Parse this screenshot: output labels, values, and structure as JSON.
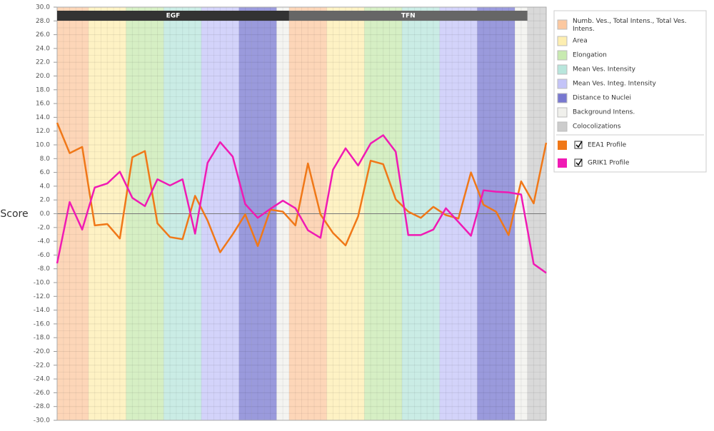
{
  "chart_data": {
    "type": "line",
    "y_label": "Score",
    "groups": [
      "EGF",
      "TFN"
    ],
    "legend_items": [
      {
        "name": "Numb. Ves., Total Intens., Total Ves. Intens.",
        "color": "#fcc8a0"
      },
      {
        "name": "Area",
        "color": "#fdeeb0"
      },
      {
        "name": "Elongation",
        "color": "#c8eab0"
      },
      {
        "name": "Mean Ves. Intensity",
        "color": "#b8e6dc"
      },
      {
        "name": "Mean Ves. Integ. Intensity",
        "color": "#c4c4f8"
      },
      {
        "name": "Distance to Nuclei",
        "color": "#7878d0"
      },
      {
        "name": "Background Intens.",
        "color": "#f0f0ec"
      },
      {
        "name": "Colocolizations",
        "color": "#cccccc"
      }
    ],
    "series": [
      {
        "name": "EEA1 Profile",
        "color": "#f07818",
        "values": [
          13.2,
          8.8,
          9.7,
          -1.7,
          -1.5,
          -3.6,
          8.2,
          9.1,
          -1.4,
          -3.4,
          -3.7,
          2.6,
          -1.0,
          -5.6,
          -3.0,
          -0.1,
          -4.7,
          0.6,
          0.3,
          -1.7,
          7.3,
          -0.1,
          -2.8,
          -4.6,
          -0.4,
          7.7,
          7.2,
          2.1,
          0.3,
          -0.6,
          1.0,
          -0.2,
          -0.7,
          6.0,
          1.3,
          0.3,
          -3.1,
          4.7,
          1.5,
          10.3
        ]
      },
      {
        "name": "GRIK1 Profile",
        "color": "#f01ab4",
        "values": [
          -7.2,
          1.7,
          -2.3,
          3.8,
          4.4,
          6.1,
          2.3,
          1.1,
          5.0,
          4.1,
          5.0,
          -2.9,
          7.4,
          10.4,
          8.3,
          1.4,
          -0.6,
          0.7,
          1.9,
          0.8,
          -2.4,
          -3.5,
          6.4,
          9.5,
          7.0,
          10.2,
          11.4,
          9.0,
          -3.1,
          -3.1,
          -2.3,
          0.8,
          -1.2,
          -3.2,
          3.4,
          3.2,
          3.1,
          2.8,
          -7.3,
          -8.6
        ]
      }
    ],
    "ylim": [
      -30,
      30
    ],
    "yticks": [
      {
        "value": -30,
        "label": "-30.0"
      },
      {
        "value": -28,
        "label": "-28.0"
      },
      {
        "value": -26,
        "label": "-26.0"
      },
      {
        "value": -24,
        "label": "-24.0"
      },
      {
        "value": -22,
        "label": "-22.0"
      },
      {
        "value": -20,
        "label": "-20.0"
      },
      {
        "value": -18,
        "label": "-18.0"
      },
      {
        "value": -16,
        "label": "-16.0"
      },
      {
        "value": -14,
        "label": "-14.0"
      },
      {
        "value": -12,
        "label": "-12.0"
      },
      {
        "value": -10,
        "label": "-10.0"
      },
      {
        "value": -8,
        "label": "-8.0"
      },
      {
        "value": -6,
        "label": "-6.0"
      },
      {
        "value": -4,
        "label": "-4.0"
      },
      {
        "value": -2,
        "label": "-2.0"
      },
      {
        "value": 0,
        "label": "0.0"
      },
      {
        "value": 2,
        "label": "2.0"
      },
      {
        "value": 4,
        "label": "4.0"
      },
      {
        "value": 6,
        "label": "6.0"
      },
      {
        "value": 8,
        "label": "8.0"
      },
      {
        "value": 10,
        "label": "10.0"
      },
      {
        "value": 12,
        "label": "12.0"
      },
      {
        "value": 14,
        "label": "14.0"
      },
      {
        "value": 16,
        "label": "16.0"
      },
      {
        "value": 18,
        "label": "18.0"
      },
      {
        "value": 20,
        "label": "20.0"
      },
      {
        "value": 22,
        "label": "22.0"
      },
      {
        "value": 24,
        "label": "24.0"
      },
      {
        "value": 26,
        "label": "26.0"
      },
      {
        "value": 28,
        "label": "28.0"
      },
      {
        "value": 30,
        "label": "30.0"
      }
    ],
    "grid": true
  }
}
